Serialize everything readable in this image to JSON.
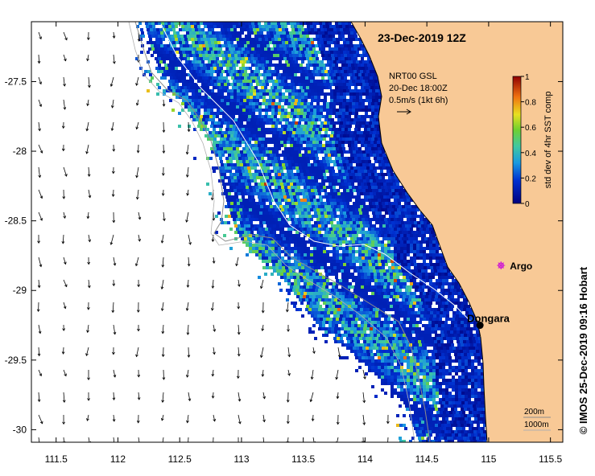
{
  "title": "23-Dec-2019 12Z",
  "credit": "© IMOS 25-Dec-2019 09:16 Hobart",
  "legend": {
    "product": "NRT00 GSL",
    "time": "20-Dec 18:00Z",
    "scale": "0.5m/s (1kt 6h)"
  },
  "colorbar": {
    "label": "std dev of 4hr SST comp",
    "ticks": [
      "0",
      "0.2",
      "0.4",
      "0.6",
      "0.8",
      "1"
    ],
    "min": 0,
    "max": 1
  },
  "axes": {
    "x_ticks": [
      "111.5",
      "112",
      "112.5",
      "113",
      "113.5",
      "114",
      "114.5",
      "115",
      "115.5"
    ],
    "y_ticks": [
      "-27.5",
      "-28",
      "-28.5",
      "-29",
      "-29.5",
      "-30"
    ],
    "lon_range": [
      111.3,
      115.6
    ],
    "lat_range": [
      -27.07,
      -30.09
    ]
  },
  "places": [
    {
      "name": "Dongara",
      "lon": 114.93,
      "lat": -29.25
    },
    {
      "name": "Argo",
      "lon": 115.1,
      "lat": -28.82
    }
  ],
  "bathymetry": {
    "contour_200": "200m",
    "contour_1000": "1000m"
  },
  "colors": {
    "land": "#f8c996",
    "sea_bg": "#ffffff",
    "argo": "#d020d0",
    "contour": "#8c8c8c"
  }
}
